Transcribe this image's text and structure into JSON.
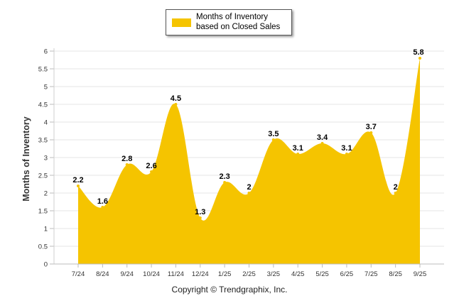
{
  "legend": {
    "label": "Months of Inventory based on Closed Sales",
    "color": "#F5C400"
  },
  "footer": {
    "copyright": "Copyright © Trendgraphix, Inc."
  },
  "chart_data": {
    "type": "area",
    "title": "",
    "xlabel": "",
    "ylabel": "Months of Inventory",
    "categories": [
      "7/24",
      "8/24",
      "9/24",
      "10/24",
      "11/24",
      "12/24",
      "1/25",
      "2/25",
      "3/25",
      "4/25",
      "5/25",
      "6/25",
      "7/25",
      "8/25",
      "9/25"
    ],
    "series": [
      {
        "name": "Months of Inventory based on Closed Sales",
        "values": [
          2.2,
          1.6,
          2.8,
          2.6,
          4.5,
          1.3,
          2.3,
          2,
          3.5,
          3.1,
          3.4,
          3.1,
          3.7,
          2,
          5.8
        ],
        "color": "#F5C400"
      }
    ],
    "ylim": [
      0,
      6
    ],
    "yticks": [
      0,
      0.5,
      1,
      1.5,
      2,
      2.5,
      3,
      3.5,
      4,
      4.5,
      5,
      5.5,
      6
    ],
    "grid": true,
    "legend": "top-center"
  }
}
